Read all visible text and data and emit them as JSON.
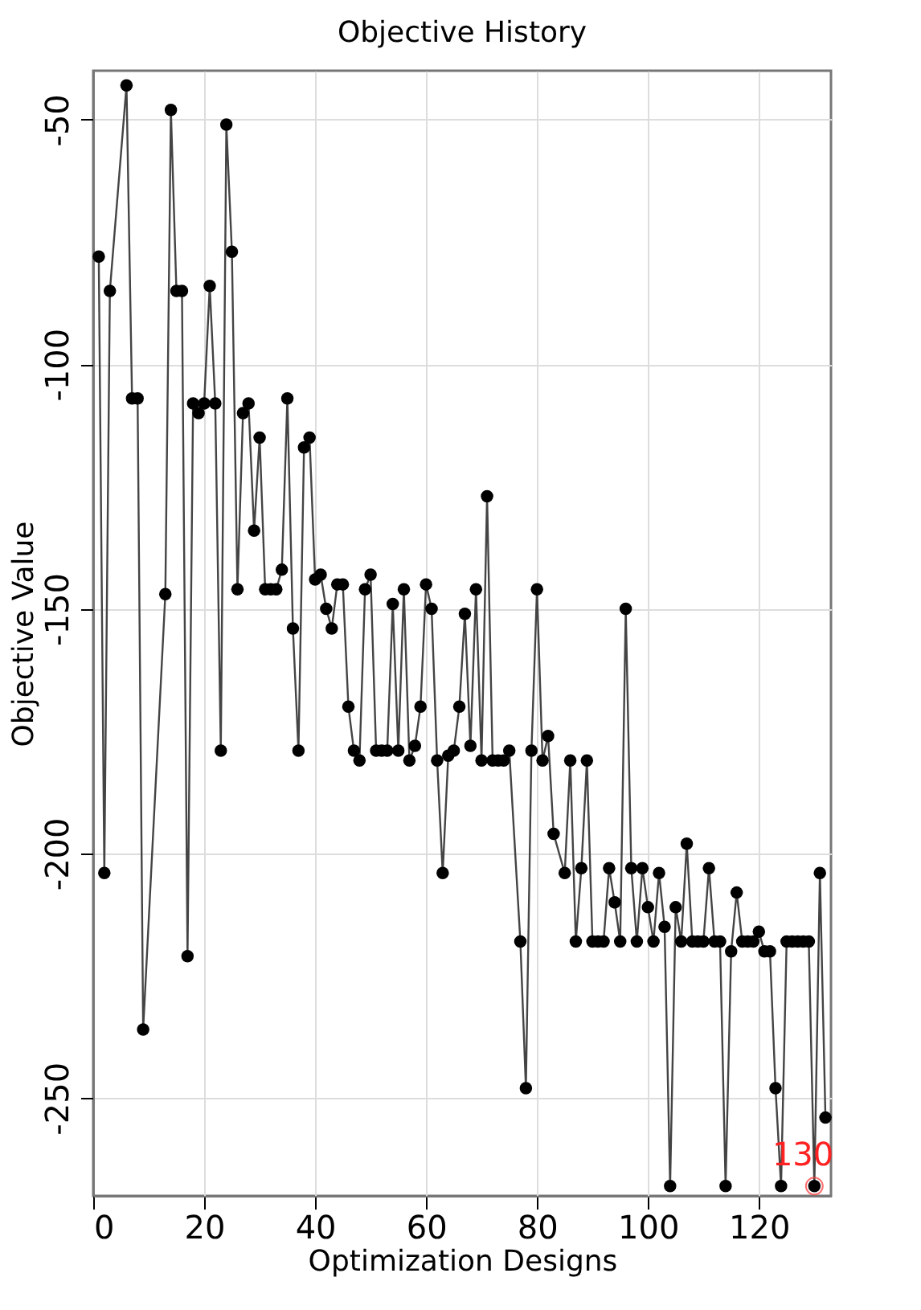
{
  "chart_data": {
    "type": "line",
    "title": "Objective History",
    "xlabel": "Optimization Designs",
    "ylabel": "Objective Value",
    "xlim": [
      0,
      133
    ],
    "xticks": [
      0,
      20,
      40,
      60,
      80,
      100,
      120
    ],
    "ylim": [
      -270,
      -40
    ],
    "yticks": [
      -50,
      -100,
      -150,
      -200,
      -250
    ],
    "grid": true,
    "marker": "circle",
    "line_style": "solid",
    "series": [
      {
        "color": "#000000",
        "x": [
          1,
          2,
          3,
          6,
          7,
          8,
          9,
          13,
          14,
          15,
          16,
          17,
          18,
          19,
          20,
          21,
          22,
          23,
          24,
          25,
          26,
          27,
          28,
          29,
          30,
          31,
          32,
          33,
          34,
          35,
          36,
          37,
          38,
          39,
          40,
          41,
          42,
          43,
          44,
          45,
          46,
          47,
          48,
          49,
          50,
          51,
          52,
          53,
          54,
          55,
          56,
          57,
          58,
          59,
          60,
          61,
          62,
          63,
          64,
          65,
          66,
          67,
          68,
          69,
          70,
          71,
          72,
          73,
          74,
          75,
          77,
          78,
          79,
          80,
          81,
          82,
          83,
          85,
          86,
          87,
          88,
          89,
          90,
          91,
          92,
          93,
          94,
          95,
          96,
          97,
          98,
          99,
          100,
          101,
          102,
          103,
          104,
          105,
          106,
          107,
          108,
          109,
          110,
          111,
          112,
          113,
          114,
          115,
          116,
          117,
          118,
          119,
          120,
          121,
          122,
          123,
          124,
          125,
          126,
          127,
          128,
          129,
          130,
          131,
          132
        ],
        "values": [
          -78,
          -204,
          -85,
          -43,
          -107,
          -107,
          -236,
          -147,
          -48,
          -85,
          -85,
          -221,
          -108,
          -110,
          -108,
          -84,
          -108,
          -179,
          -51,
          -77,
          -146,
          -110,
          -108,
          -134,
          -115,
          -146,
          -146,
          -146,
          -142,
          -107,
          -154,
          -179,
          -117,
          -115,
          -144,
          -143,
          -150,
          -154,
          -145,
          -145,
          -170,
          -179,
          -181,
          -146,
          -143,
          -179,
          -179,
          -179,
          -149,
          -179,
          -146,
          -181,
          -178,
          -170,
          -145,
          -150,
          -181,
          -204,
          -180,
          -179,
          -170,
          -151,
          -178,
          -146,
          -181,
          -127,
          -181,
          -181,
          -181,
          -179,
          -218,
          -248,
          -179,
          -146,
          -181,
          -176,
          -196,
          -204,
          -181,
          -218,
          -203,
          -181,
          -218,
          -218,
          -218,
          -203,
          -210,
          -218,
          -150,
          -203,
          -218,
          -203,
          -211,
          -218,
          -204,
          -215,
          -268,
          -211,
          -218,
          -198,
          -218,
          -218,
          -218,
          -203,
          -218,
          -218,
          -268,
          -220,
          -208,
          -218,
          -218,
          -218,
          -216,
          -220,
          -220,
          -248,
          -268,
          -218,
          -218,
          -218,
          -218,
          -218,
          -268,
          -204,
          -254
        ]
      }
    ],
    "annotations": [
      {
        "text": "130",
        "x": 130,
        "y": -268
      }
    ]
  }
}
